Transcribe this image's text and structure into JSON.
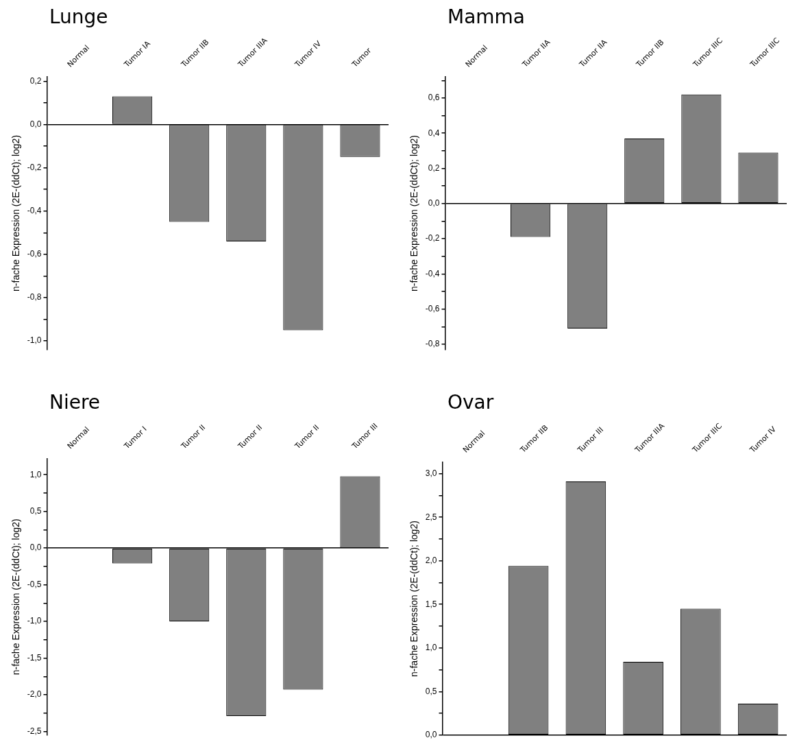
{
  "chart_data": [
    {
      "type": "bar",
      "title": "Lunge",
      "ylabel": "n-fache Expression (2E-(ddCt); log2)",
      "categories": [
        "Normal",
        "Tumor IA",
        "Tumor IIB",
        "Tumor IIIA",
        "Tumor IV",
        "Tumor"
      ],
      "values": [
        0,
        0.13,
        -0.45,
        -0.54,
        -0.95,
        -0.15
      ],
      "color": "#808080",
      "ylim": [
        -1.04,
        0.22
      ],
      "yticks": [
        {
          "value": -1.0,
          "label": "-1,0"
        },
        {
          "value": -0.9,
          "label": null
        },
        {
          "value": -0.8,
          "label": "-0,8"
        },
        {
          "value": -0.7,
          "label": null
        },
        {
          "value": -0.6,
          "label": "-0,6"
        },
        {
          "value": -0.5,
          "label": null
        },
        {
          "value": -0.4,
          "label": "-0,4"
        },
        {
          "value": -0.3,
          "label": null
        },
        {
          "value": -0.2,
          "label": "-0,2"
        },
        {
          "value": -0.1,
          "label": null
        },
        {
          "value": 0,
          "label": "0,0"
        },
        {
          "value": 0.1,
          "label": null
        },
        {
          "value": 0.2,
          "label": "0,2"
        }
      ]
    },
    {
      "type": "bar",
      "title": "Mamma",
      "ylabel": "n-fache Expression (2E-(ddCt); log2)",
      "categories": [
        "Normal",
        "Tumor IIA",
        "Tumor IIA",
        "Tumor IIB",
        "Tumor IIIC",
        "Tumor IIIC"
      ],
      "values": [
        0,
        -0.19,
        -0.71,
        0.37,
        0.62,
        0.29
      ],
      "color": "#808080",
      "ylim": [
        -0.83,
        0.72
      ],
      "yticks": [
        {
          "value": -0.8,
          "label": "-0,8"
        },
        {
          "value": -0.7,
          "label": null
        },
        {
          "value": -0.6,
          "label": "-0,6"
        },
        {
          "value": -0.5,
          "label": null
        },
        {
          "value": -0.4,
          "label": "-0,4"
        },
        {
          "value": -0.3,
          "label": null
        },
        {
          "value": -0.2,
          "label": "-0,2"
        },
        {
          "value": -0.1,
          "label": null
        },
        {
          "value": 0,
          "label": "0,0"
        },
        {
          "value": 0.1,
          "label": null
        },
        {
          "value": 0.2,
          "label": "0,2"
        },
        {
          "value": 0.3,
          "label": null
        },
        {
          "value": 0.4,
          "label": "0,4"
        },
        {
          "value": 0.5,
          "label": null
        },
        {
          "value": 0.6,
          "label": "0,6"
        },
        {
          "value": 0.7,
          "label": null
        }
      ]
    },
    {
      "type": "bar",
      "title": "Niere",
      "ylabel": "n-fache Expression (2E-(ddCt); log2)",
      "categories": [
        "Normal",
        "Tumor I",
        "Tumor II",
        "Tumor II",
        "Tumor II",
        "Tumor III"
      ],
      "values": [
        0,
        -0.21,
        -1.0,
        -2.29,
        -1.93,
        0.98
      ],
      "color": "#808080",
      "ylim": [
        -2.55,
        1.22
      ],
      "yticks": [
        {
          "value": -2.5,
          "label": "-2,5"
        },
        {
          "value": -2.25,
          "label": null
        },
        {
          "value": -2.0,
          "label": "-2,0"
        },
        {
          "value": -1.75,
          "label": null
        },
        {
          "value": -1.5,
          "label": "-1,5"
        },
        {
          "value": -1.25,
          "label": null
        },
        {
          "value": -1.0,
          "label": "-1,0"
        },
        {
          "value": -0.75,
          "label": null
        },
        {
          "value": -0.5,
          "label": "-0,5"
        },
        {
          "value": -0.25,
          "label": null
        },
        {
          "value": 0,
          "label": "0,0"
        },
        {
          "value": 0.25,
          "label": null
        },
        {
          "value": 0.5,
          "label": "0,5"
        },
        {
          "value": 0.75,
          "label": null
        },
        {
          "value": 1.0,
          "label": "1,0"
        }
      ]
    },
    {
      "type": "bar",
      "title": "Ovar",
      "ylabel": "n-fache Expression (2E-(ddCt); log2)",
      "categories": [
        "Normal",
        "Tumor IIB",
        "Tumor III",
        "Tumor IIIA",
        "Tumor IIIC",
        "Tumor IV"
      ],
      "values": [
        0,
        1.94,
        2.91,
        0.84,
        1.45,
        0.36
      ],
      "color": "#808080",
      "ylim": [
        0,
        3.13
      ],
      "yticks": [
        {
          "value": 0,
          "label": "0,0"
        },
        {
          "value": 0.25,
          "label": null
        },
        {
          "value": 0.5,
          "label": "0,5"
        },
        {
          "value": 0.75,
          "label": null
        },
        {
          "value": 1.0,
          "label": "1,0"
        },
        {
          "value": 1.25,
          "label": null
        },
        {
          "value": 1.5,
          "label": "1,5"
        },
        {
          "value": 1.75,
          "label": null
        },
        {
          "value": 2.0,
          "label": "2,0"
        },
        {
          "value": 2.25,
          "label": null
        },
        {
          "value": 2.5,
          "label": "2,5"
        },
        {
          "value": 2.75,
          "label": null
        },
        {
          "value": 3.0,
          "label": "3,0"
        }
      ]
    }
  ]
}
